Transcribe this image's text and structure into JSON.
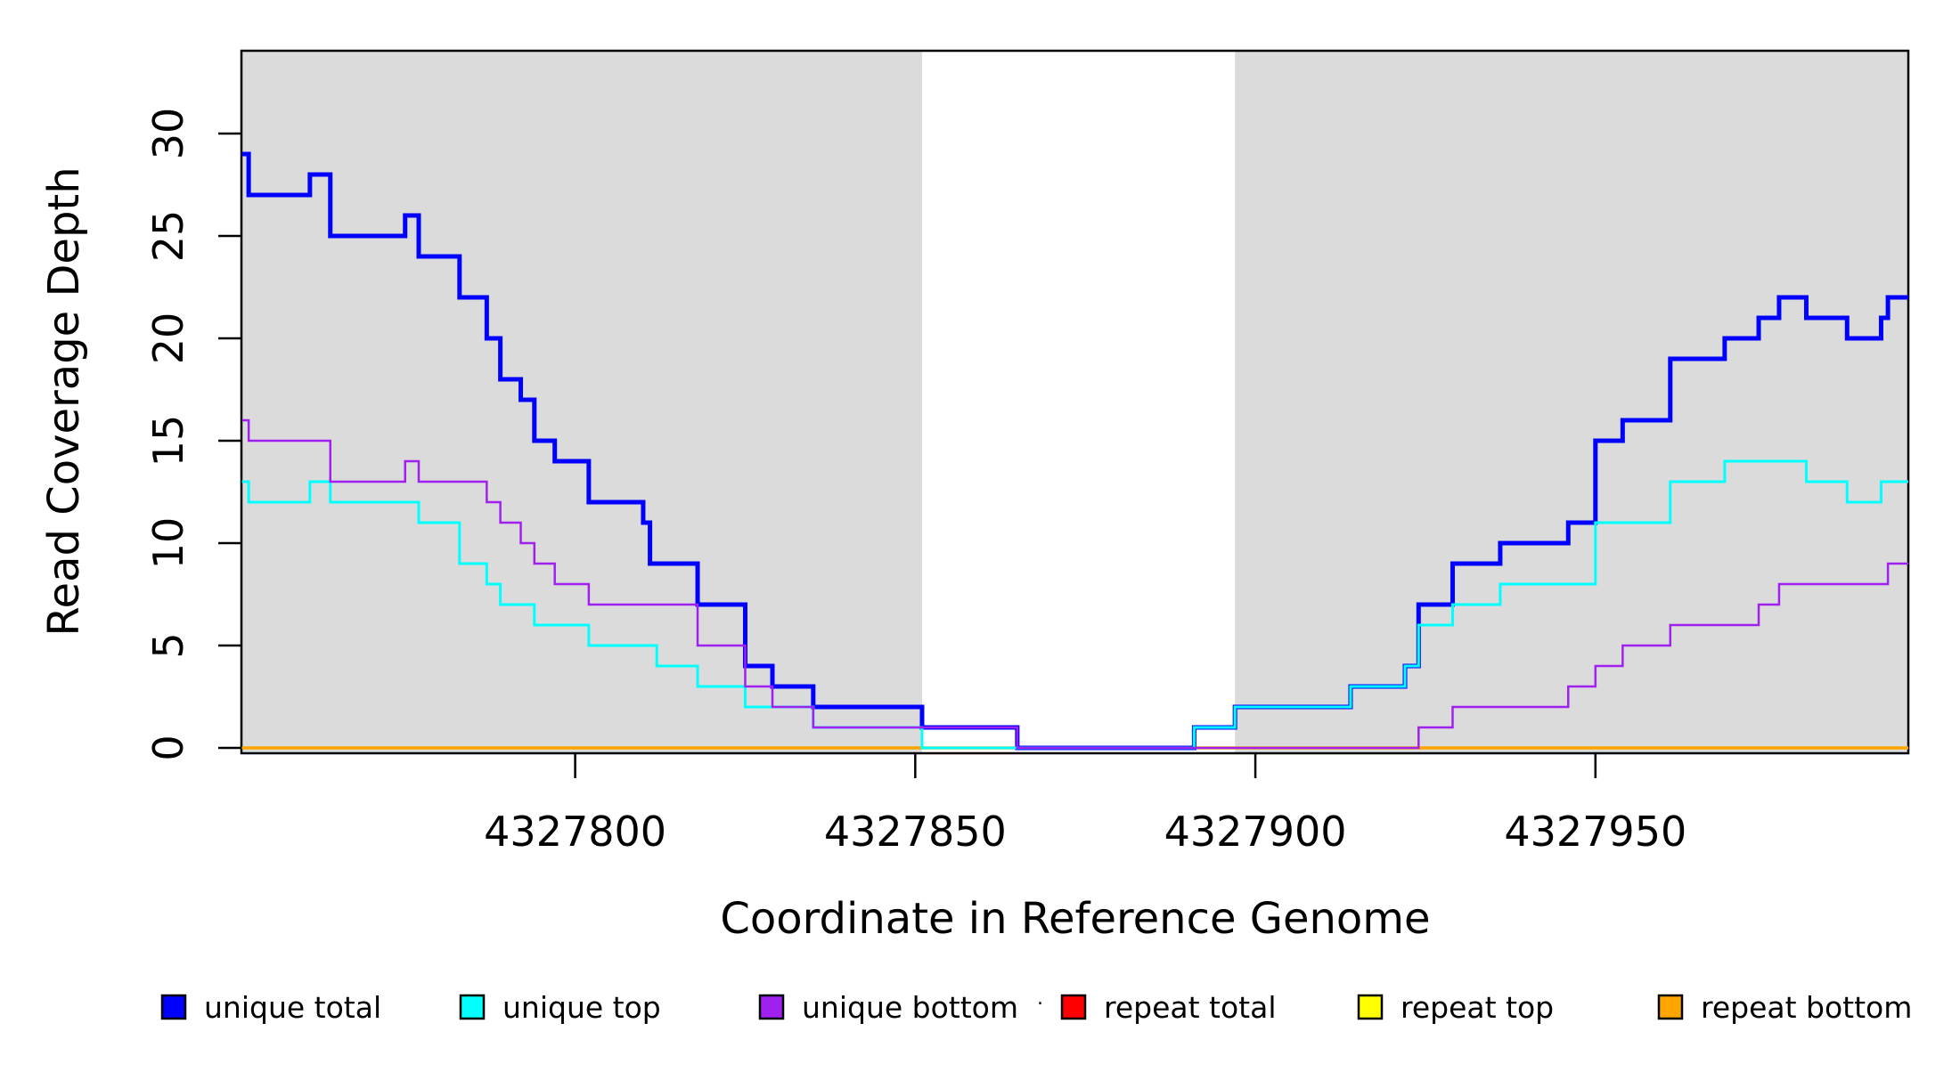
{
  "chart_data": {
    "type": "line",
    "subtype": "step-coverage-plot",
    "title": "",
    "xlabel": "Coordinate in Reference Genome",
    "ylabel": "Read Coverage Depth",
    "xlim": [
      4327751,
      4327996
    ],
    "ylim": [
      0,
      34
    ],
    "grid": "off",
    "x_ticks": [
      4327800,
      4327850,
      4327900,
      4327950
    ],
    "y_ticks": [
      0,
      5,
      10,
      15,
      20,
      25,
      30
    ],
    "plot_bg": "#ffffff",
    "shaded_region_color": "#DBDBDB",
    "shaded_regions": [
      {
        "x0": 4327751,
        "x1": 4327851
      },
      {
        "x0": 4327897,
        "x1": 4327996
      }
    ],
    "series": [
      {
        "name": "repeat total",
        "color": "#FF0000",
        "width": 2.5,
        "steps": [
          [
            4327751,
            0
          ],
          [
            4327996,
            0
          ]
        ]
      },
      {
        "name": "repeat top",
        "color": "#FFFF00",
        "width": 2.5,
        "steps": [
          [
            4327751,
            0
          ],
          [
            4327996,
            0
          ]
        ]
      },
      {
        "name": "repeat bottom",
        "color": "#FFA500",
        "width": 3.5,
        "steps": [
          [
            4327751,
            0
          ],
          [
            4327996,
            0
          ]
        ]
      },
      {
        "name": "unique total",
        "color": "#0000FF",
        "width": 5,
        "steps": [
          [
            4327751,
            29
          ],
          [
            4327752,
            27
          ],
          [
            4327761,
            28
          ],
          [
            4327764,
            25
          ],
          [
            4327775,
            26
          ],
          [
            4327777,
            24
          ],
          [
            4327783,
            22
          ],
          [
            4327787,
            20
          ],
          [
            4327789,
            18
          ],
          [
            4327792,
            17
          ],
          [
            4327794,
            15
          ],
          [
            4327797,
            14
          ],
          [
            4327802,
            12
          ],
          [
            4327810,
            11
          ],
          [
            4327811,
            9
          ],
          [
            4327818,
            7
          ],
          [
            4327825,
            4
          ],
          [
            4327829,
            3
          ],
          [
            4327835,
            2
          ],
          [
            4327851,
            1
          ],
          [
            4327865,
            0
          ],
          [
            4327891,
            1
          ],
          [
            4327897,
            2
          ],
          [
            4327914,
            3
          ],
          [
            4327922,
            4
          ],
          [
            4327924,
            7
          ],
          [
            4327929,
            9
          ],
          [
            4327936,
            10
          ],
          [
            4327946,
            11
          ],
          [
            4327950,
            15
          ],
          [
            4327954,
            16
          ],
          [
            4327961,
            19
          ],
          [
            4327969,
            20
          ],
          [
            4327974,
            21
          ],
          [
            4327977,
            22
          ],
          [
            4327981,
            21
          ],
          [
            4327987,
            20
          ],
          [
            4327992,
            21
          ],
          [
            4327993,
            22
          ],
          [
            4327996,
            22
          ]
        ]
      },
      {
        "name": "unique top",
        "color": "#00FFFF",
        "width": 3,
        "steps": [
          [
            4327751,
            13
          ],
          [
            4327752,
            12
          ],
          [
            4327761,
            13
          ],
          [
            4327764,
            12
          ],
          [
            4327777,
            11
          ],
          [
            4327783,
            9
          ],
          [
            4327787,
            8
          ],
          [
            4327789,
            7
          ],
          [
            4327794,
            6
          ],
          [
            4327802,
            5
          ],
          [
            4327812,
            4
          ],
          [
            4327818,
            3
          ],
          [
            4327825,
            2
          ],
          [
            4327835,
            1
          ],
          [
            4327851,
            0
          ],
          [
            4327891,
            1
          ],
          [
            4327897,
            2
          ],
          [
            4327914,
            3
          ],
          [
            4327922,
            4
          ],
          [
            4327924,
            6
          ],
          [
            4327929,
            7
          ],
          [
            4327936,
            8
          ],
          [
            4327950,
            11
          ],
          [
            4327961,
            13
          ],
          [
            4327969,
            14
          ],
          [
            4327981,
            13
          ],
          [
            4327987,
            12
          ],
          [
            4327992,
            13
          ],
          [
            4327996,
            13
          ]
        ]
      },
      {
        "name": "unique bottom",
        "color": "#A020F0",
        "width": 2.5,
        "steps": [
          [
            4327751,
            16
          ],
          [
            4327752,
            15
          ],
          [
            4327764,
            13
          ],
          [
            4327775,
            14
          ],
          [
            4327777,
            13
          ],
          [
            4327787,
            12
          ],
          [
            4327789,
            11
          ],
          [
            4327792,
            10
          ],
          [
            4327794,
            9
          ],
          [
            4327797,
            8
          ],
          [
            4327802,
            7
          ],
          [
            4327818,
            5
          ],
          [
            4327825,
            3
          ],
          [
            4327829,
            2
          ],
          [
            4327835,
            1
          ],
          [
            4327865,
            0
          ],
          [
            4327924,
            1
          ],
          [
            4327929,
            2
          ],
          [
            4327946,
            3
          ],
          [
            4327950,
            4
          ],
          [
            4327954,
            5
          ],
          [
            4327961,
            6
          ],
          [
            4327974,
            7
          ],
          [
            4327977,
            8
          ],
          [
            4327993,
            9
          ],
          [
            4327996,
            9
          ]
        ]
      }
    ],
    "legend_position": "bottom",
    "legend": [
      {
        "label": "unique total",
        "color": "#0000FF"
      },
      {
        "label": "unique top",
        "color": "#00FFFF"
      },
      {
        "label": "unique bottom",
        "color": "#A020F0"
      },
      {
        "label": "repeat total",
        "color": "#FF0000"
      },
      {
        "label": "repeat top",
        "color": "#FFFF00"
      },
      {
        "label": "repeat bottom",
        "color": "#FFA500"
      }
    ],
    "stray_mark": "."
  }
}
